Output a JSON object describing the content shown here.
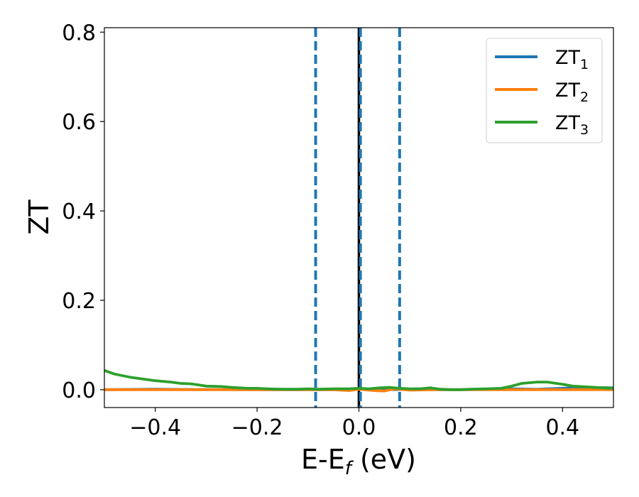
{
  "chart_data": {
    "type": "line",
    "xlabel": {
      "main": "E-E",
      "sub": "f",
      "unit": " (eV)"
    },
    "ylabel": "ZT",
    "xlim": [
      -0.5,
      0.5
    ],
    "ylim": [
      -0.04,
      0.81
    ],
    "x_ticks": [
      -0.4,
      -0.2,
      0.0,
      0.2,
      0.4
    ],
    "x_tick_labels": [
      "−0.4",
      "−0.2",
      "0.0",
      "0.2",
      "0.4"
    ],
    "y_ticks": [
      0.0,
      0.2,
      0.4,
      0.6,
      0.8
    ],
    "y_tick_labels": [
      "0.0",
      "0.2",
      "0.4",
      "0.6",
      "0.8"
    ],
    "grid": false,
    "legend_position": "top-right",
    "vlines": [
      {
        "x": -0.085,
        "style": "dashed",
        "color": "#1f77b4"
      },
      {
        "x": 0.0,
        "style": "solid",
        "color": "#000000"
      },
      {
        "x": 0.003,
        "style": "dashed",
        "color": "#1f77b4"
      },
      {
        "x": 0.08,
        "style": "dashed",
        "color": "#1f77b4"
      }
    ],
    "series": [
      {
        "name": "ZT",
        "sub": "1",
        "color": "#1f77b4",
        "x": [
          -0.5,
          -0.45,
          -0.4,
          -0.35,
          -0.3,
          -0.25,
          -0.2,
          -0.15,
          -0.1,
          -0.05,
          0.0,
          0.05,
          0.1,
          0.15,
          0.2,
          0.25,
          0.3,
          0.35,
          0.4,
          0.45,
          0.5
        ],
        "y": [
          0.0,
          0.0005,
          0.001,
          0.0005,
          0.0003,
          0.0002,
          0.0001,
          0.0,
          0.0,
          0.0,
          0.0005,
          0.0003,
          0.0002,
          0.0001,
          0.0,
          0.0005,
          0.002,
          0.0008,
          0.003,
          0.005,
          0.004
        ]
      },
      {
        "name": "ZT",
        "sub": "2",
        "color": "#ff7f0e",
        "x": [
          -0.5,
          -0.4,
          -0.3,
          -0.2,
          -0.1,
          -0.05,
          -0.02,
          0.0,
          0.03,
          0.05,
          0.07,
          0.1,
          0.15,
          0.2,
          0.3,
          0.4,
          0.5
        ],
        "y": [
          0.0,
          0.0,
          0.0,
          0.0,
          0.0,
          0.0,
          -0.002,
          0.001,
          -0.002,
          -0.003,
          0.002,
          -0.001,
          0.0,
          0.0,
          0.0,
          0.0,
          0.0
        ]
      },
      {
        "name": "ZT",
        "sub": "3",
        "color": "#2ca02c",
        "x": [
          -0.5,
          -0.48,
          -0.45,
          -0.42,
          -0.4,
          -0.37,
          -0.35,
          -0.33,
          -0.3,
          -0.27,
          -0.25,
          -0.22,
          -0.2,
          -0.18,
          -0.15,
          -0.12,
          -0.1,
          -0.08,
          -0.05,
          -0.02,
          0.0,
          0.02,
          0.04,
          0.06,
          0.08,
          0.1,
          0.12,
          0.14,
          0.16,
          0.18,
          0.2,
          0.22,
          0.25,
          0.28,
          0.3,
          0.32,
          0.35,
          0.37,
          0.4,
          0.42,
          0.45,
          0.48,
          0.5
        ],
        "y": [
          0.043,
          0.035,
          0.028,
          0.023,
          0.02,
          0.017,
          0.014,
          0.013,
          0.008,
          0.007,
          0.005,
          0.003,
          0.003,
          0.002,
          0.001,
          0.001,
          0.002,
          0.001,
          0.002,
          0.002,
          0.003,
          0.002,
          0.004,
          0.005,
          0.003,
          0.002,
          0.002,
          0.004,
          0.001,
          0.0,
          0.0,
          0.001,
          0.002,
          0.003,
          0.008,
          0.014,
          0.017,
          0.017,
          0.012,
          0.008,
          0.006,
          0.004,
          0.003
        ]
      }
    ]
  }
}
